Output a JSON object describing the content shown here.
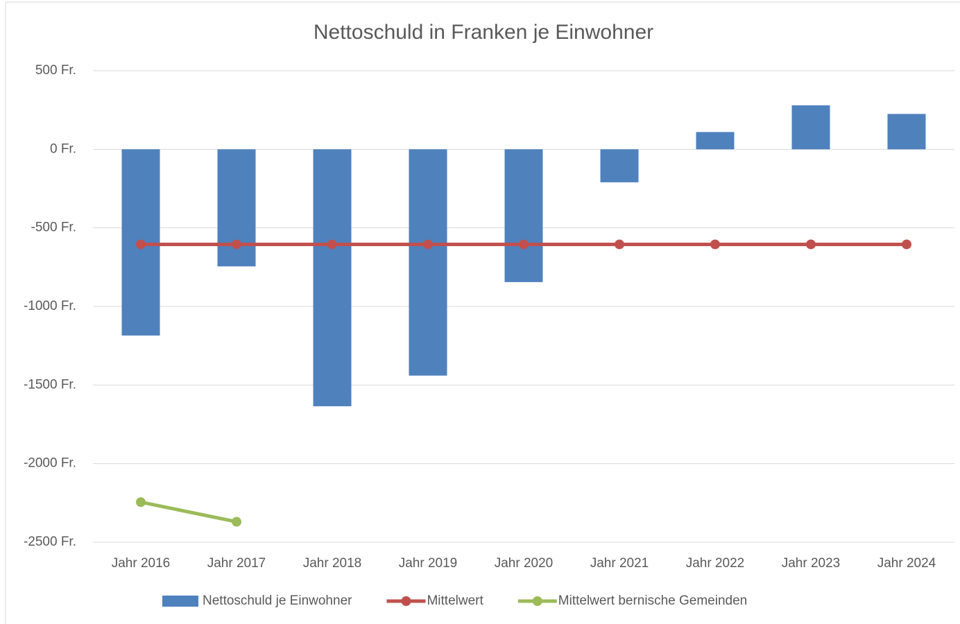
{
  "chart_data": {
    "type": "bar",
    "title": "Nettoschuld in Franken je Einwohner",
    "categories": [
      "Jahr 2016",
      "Jahr 2017",
      "Jahr 2018",
      "Jahr 2019",
      "Jahr 2020",
      "Jahr 2021",
      "Jahr 2022",
      "Jahr 2023",
      "Jahr 2024"
    ],
    "series": [
      {
        "name": "Nettoschuld je Einwohner",
        "type": "bar",
        "color": "#4f81bd",
        "values": [
          -1185,
          -745,
          -1635,
          -1440,
          -845,
          -210,
          110,
          280,
          225
        ]
      },
      {
        "name": "Mittelwert",
        "type": "line",
        "color": "#c0504d",
        "values": [
          -605,
          -605,
          -605,
          -605,
          -605,
          -605,
          -605,
          -605,
          -605
        ]
      },
      {
        "name": "Mittelwert bernische Gemeinden",
        "type": "line",
        "color": "#9bbb59",
        "values": [
          -2245,
          -2370,
          null,
          null,
          null,
          null,
          null,
          null,
          null
        ]
      }
    ],
    "ylim": [
      -2500,
      500
    ],
    "yticks": [
      {
        "value": -2500,
        "label": "-2500 Fr."
      },
      {
        "value": -2000,
        "label": "-2000 Fr."
      },
      {
        "value": -1500,
        "label": "-1500 Fr."
      },
      {
        "value": -1000,
        "label": "-1000 Fr."
      },
      {
        "value": -500,
        "label": "-500 Fr."
      },
      {
        "value": 0,
        "label": "0 Fr."
      },
      {
        "value": 500,
        "label": "500 Fr."
      }
    ],
    "grid": true,
    "legend": "bottom"
  }
}
